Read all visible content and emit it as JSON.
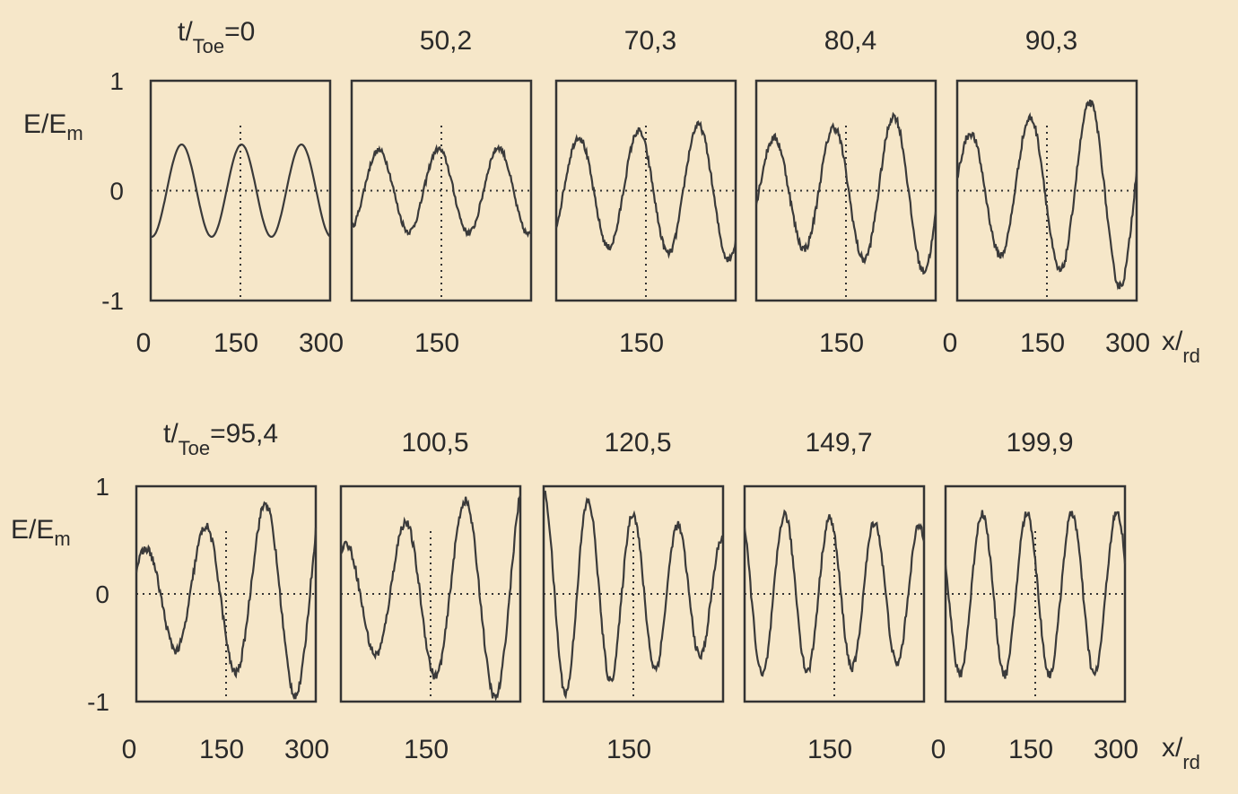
{
  "chart_data": {
    "type": "line",
    "ylabel": "E/E",
    "ylabel_sub": "m",
    "xlabel": "x/",
    "xlabel_sub": "rd",
    "time_label": "t/",
    "time_label_sub": "Toe",
    "ylim": [
      -1,
      1
    ],
    "xlim": [
      0,
      300
    ],
    "y_ticks": [
      "1",
      "0",
      "-1"
    ],
    "rows": [
      {
        "panels": [
          {
            "t": "=0",
            "x_ticks": [
              "0",
              "150",
              "300"
            ],
            "k": 3,
            "phase": 0.0,
            "amp": 0.42,
            "growth": 0.0,
            "noise": 0.0
          },
          {
            "t": "50,2",
            "x_ticks": [
              "",
              "150",
              ""
            ],
            "k": 3,
            "phase": 0.4,
            "amp": 0.38,
            "growth": 0.1,
            "noise": 0.05
          },
          {
            "t": "70,3",
            "x_ticks": [
              "",
              "150",
              ""
            ],
            "k": 3,
            "phase": 0.9,
            "amp": 0.55,
            "growth": 0.3,
            "noise": 0.06
          },
          {
            "t": "80,4",
            "x_ticks": [
              "",
              "150",
              ""
            ],
            "k": 3,
            "phase": 1.4,
            "amp": 0.6,
            "growth": 0.5,
            "noise": 0.07
          },
          {
            "t": "90,3",
            "x_ticks": [
              "0",
              "150",
              "300"
            ],
            "k": 3,
            "phase": 1.9,
            "amp": 0.7,
            "growth": 0.6,
            "noise": 0.07
          }
        ]
      },
      {
        "panels": [
          {
            "t": "=95,4",
            "x_ticks": [
              "0",
              "150",
              "300"
            ],
            "k": 3,
            "phase": 2.3,
            "amp": 0.7,
            "growth": 0.9,
            "noise": 0.08
          },
          {
            "t": "100,5",
            "x_ticks": [
              "",
              "150",
              ""
            ],
            "k": 3,
            "phase": 2.8,
            "amp": 0.75,
            "growth": 0.8,
            "noise": 0.08
          },
          {
            "t": "120,5",
            "x_ticks": [
              "",
              "150",
              ""
            ],
            "k": 4,
            "phase": 3.3,
            "amp": 0.75,
            "growth": -0.6,
            "noise": 0.08
          },
          {
            "t": "149,7",
            "x_ticks": [
              "",
              "150",
              ""
            ],
            "k": 4,
            "phase": 3.9,
            "amp": 0.7,
            "growth": -0.2,
            "noise": 0.08
          },
          {
            "t": "199,9",
            "x_ticks": [
              "0",
              "150",
              "300"
            ],
            "k": 4,
            "phase": 4.4,
            "amp": 0.75,
            "growth": 0.0,
            "noise": 0.08
          }
        ]
      }
    ]
  }
}
